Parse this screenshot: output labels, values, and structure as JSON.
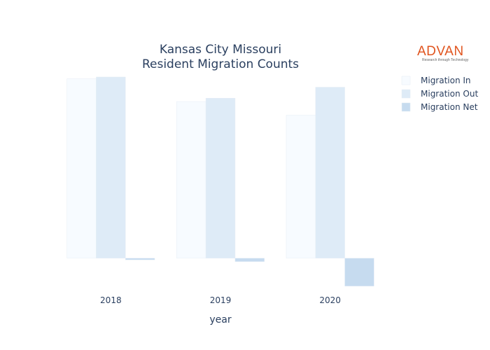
{
  "logo": {
    "word": "ADVAN",
    "tagline": "Research through Technology"
  },
  "chart_data": {
    "type": "bar",
    "title": [
      "Kansas City Missouri",
      "Resident Migration Counts"
    ],
    "xlabel": "year",
    "ylabel": "",
    "categories": [
      "2018",
      "2019",
      "2020"
    ],
    "series": [
      {
        "name": "Migration In",
        "values": [
          1060,
          925,
          845
        ],
        "color": "#f7fbff"
      },
      {
        "name": "Migration Out",
        "values": [
          1070,
          945,
          1010
        ],
        "color": "#deebf7"
      },
      {
        "name": "Migration Net",
        "values": [
          -10,
          -20,
          -165
        ],
        "color": "#c6dbef"
      }
    ],
    "ylim": [
      -170,
      1070
    ],
    "grid": false,
    "legend_position": "top-right"
  }
}
